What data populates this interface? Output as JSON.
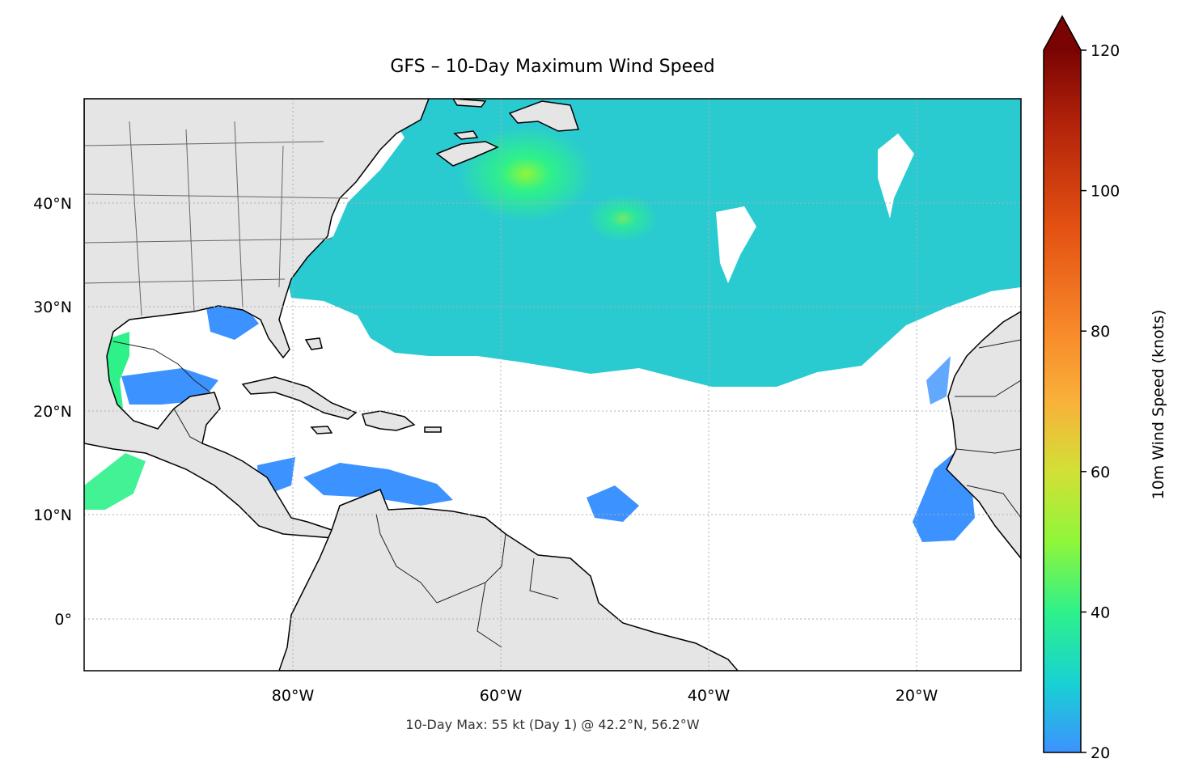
{
  "title": "GFS – 10-Day Maximum Wind Speed",
  "subtitle": "10-Day Max: 55 kt (Day 1) @ 42.2°N, 56.2°W",
  "map": {
    "lon_range": [
      -100,
      -10
    ],
    "lat_range": [
      -5,
      50
    ],
    "lon_ticks": [
      {
        "value": -80,
        "label": "80°W"
      },
      {
        "value": -60,
        "label": "60°W"
      },
      {
        "value": -40,
        "label": "40°W"
      },
      {
        "value": -20,
        "label": "20°W"
      }
    ],
    "lat_ticks": [
      {
        "value": 40,
        "label": "40°N"
      },
      {
        "value": 30,
        "label": "30°N"
      },
      {
        "value": 20,
        "label": "20°N"
      },
      {
        "value": 10,
        "label": "10°N"
      },
      {
        "value": 0,
        "label": "0°"
      }
    ],
    "grid": true,
    "colors": {
      "land": "#e5e5e5",
      "coast": "#000000",
      "ocean": "#ffffff",
      "gridline": "#b0b0b0"
    }
  },
  "colorbar": {
    "label": "10m Wind Speed (knots)",
    "min": 20,
    "max": 120,
    "ticks": [
      20,
      40,
      60,
      80,
      100,
      120
    ],
    "extend": "max",
    "stops": [
      {
        "v": 20,
        "c": "#3c92ff"
      },
      {
        "v": 30,
        "c": "#18d2d2"
      },
      {
        "v": 40,
        "c": "#2ef18a"
      },
      {
        "v": 50,
        "c": "#8ff63a"
      },
      {
        "v": 60,
        "c": "#d2e036"
      },
      {
        "v": 70,
        "c": "#f9b13a"
      },
      {
        "v": 80,
        "c": "#f8892a"
      },
      {
        "v": 95,
        "c": "#e35012"
      },
      {
        "v": 110,
        "c": "#b0210a"
      },
      {
        "v": 120,
        "c": "#7a0403"
      }
    ],
    "extend_color": "#7a0403"
  }
}
